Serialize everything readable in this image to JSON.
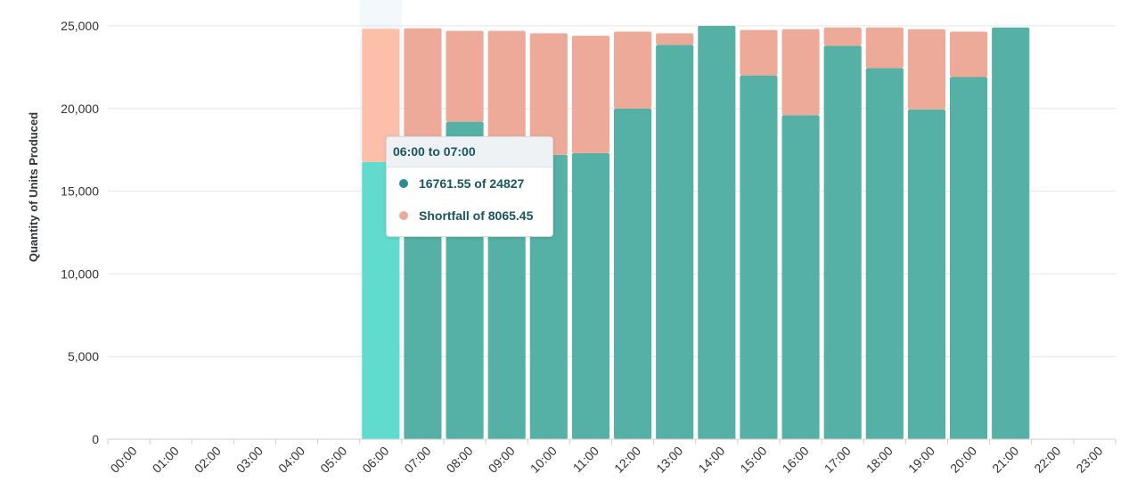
{
  "chart_data": {
    "type": "bar",
    "stacked": true,
    "ylabel": "Quantity of Units Produced",
    "ylim": [
      0,
      25000
    ],
    "yticks": [
      0,
      5000,
      10000,
      15000,
      20000,
      25000
    ],
    "ytick_labels": [
      "0",
      "5,000",
      "10,000",
      "15,000",
      "20,000",
      "25,000"
    ],
    "grid": true,
    "categories": [
      "00:00",
      "01:00",
      "02:00",
      "03:00",
      "04:00",
      "05:00",
      "06:00",
      "07:00",
      "08:00",
      "09:00",
      "10:00",
      "11:00",
      "12:00",
      "13:00",
      "14:00",
      "15:00",
      "16:00",
      "17:00",
      "18:00",
      "19:00",
      "20:00",
      "21:00",
      "22:00",
      "23:00"
    ],
    "series": [
      {
        "color": "#55b0a5",
        "highlight_color": "#62dbcf",
        "values": [
          0,
          0,
          0,
          0,
          0,
          0,
          16761.55,
          17100,
          19200,
          16900,
          17200,
          17300,
          20000,
          23850,
          25000,
          22000,
          19600,
          23800,
          22450,
          19950,
          21900,
          24900,
          0,
          0
        ]
      },
      {
        "name": "Shortfall",
        "color": "#eeaa98",
        "highlight_color": "#fbbfaa",
        "values": [
          0,
          0,
          0,
          0,
          0,
          0,
          8065.45,
          7750,
          5500,
          7800,
          7350,
          7100,
          4650,
          700,
          0,
          2750,
          5200,
          1100,
          2450,
          4850,
          2750,
          0,
          0,
          0
        ]
      }
    ],
    "highlighted_index": 6
  },
  "tooltip": {
    "title": "06:00 to 07:00",
    "rows": [
      {
        "label": "16761.55 of 24827",
        "color": "#2a8d96"
      },
      {
        "label": "Shortfall of 8065.45",
        "color": "#eeaa98"
      }
    ]
  }
}
